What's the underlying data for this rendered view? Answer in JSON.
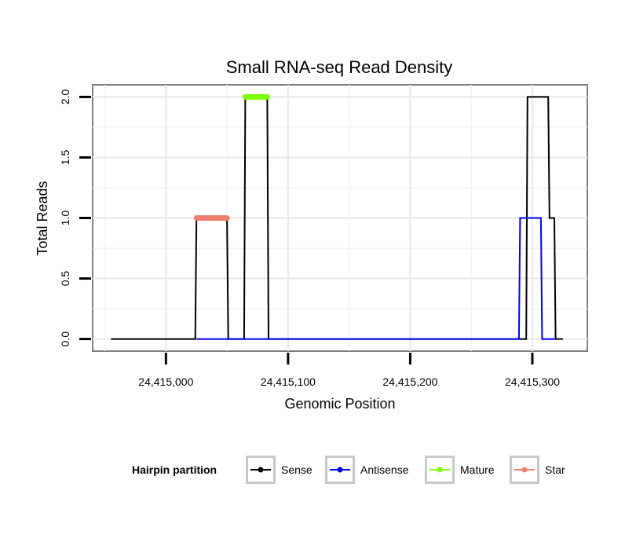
{
  "chart_data": {
    "type": "line",
    "title": "Small RNA-seq Read Density",
    "xlabel": "Genomic Position",
    "ylabel": "Total Reads",
    "xlim": [
      24414940,
      24415345
    ],
    "ylim": [
      -0.1,
      2.1
    ],
    "x_ticks": [
      24415000,
      24415100,
      24415200,
      24415300
    ],
    "x_tick_labels": [
      "24,415,000",
      "24,415,100",
      "24,415,200",
      "24,415,300"
    ],
    "y_ticks": [
      0,
      0.5,
      1,
      1.5,
      2
    ],
    "y_tick_labels": [
      "0.0",
      "0.5",
      "1.0",
      "1.5",
      "2.0"
    ],
    "grid": true,
    "legend": {
      "title": "Hairpin partition",
      "position": "bottom",
      "entries": [
        "Sense",
        "Antisense",
        "Mature",
        "Star"
      ]
    },
    "series": [
      {
        "name": "Sense",
        "color": "#000000",
        "style": "line",
        "x": [
          24414955,
          24415024,
          24415025,
          24415050,
          24415051,
          24415064,
          24415065,
          24415083,
          24415084,
          24415295,
          24415296,
          24415313,
          24415314,
          24415318,
          24415319,
          24415325
        ],
        "y": [
          0,
          0,
          1,
          1,
          0,
          0,
          2,
          2,
          0,
          0,
          2,
          2,
          1,
          1,
          0,
          0
        ]
      },
      {
        "name": "Antisense",
        "color": "#0000ff",
        "style": "line",
        "x": [
          24415025,
          24415050,
          24415065,
          24415083,
          24415255,
          24415289,
          24415290,
          24415307,
          24415308,
          24415319
        ],
        "y": [
          0,
          0,
          0,
          0,
          0,
          0,
          1,
          1,
          0,
          0
        ]
      },
      {
        "name": "Mature",
        "color": "#7fff00",
        "style": "bar",
        "x": [
          24415065,
          24415083
        ],
        "y": [
          2,
          2
        ]
      },
      {
        "name": "Star",
        "color": "#f08070",
        "style": "bar",
        "x": [
          24415025,
          24415050
        ],
        "y": [
          1,
          1
        ]
      }
    ]
  }
}
